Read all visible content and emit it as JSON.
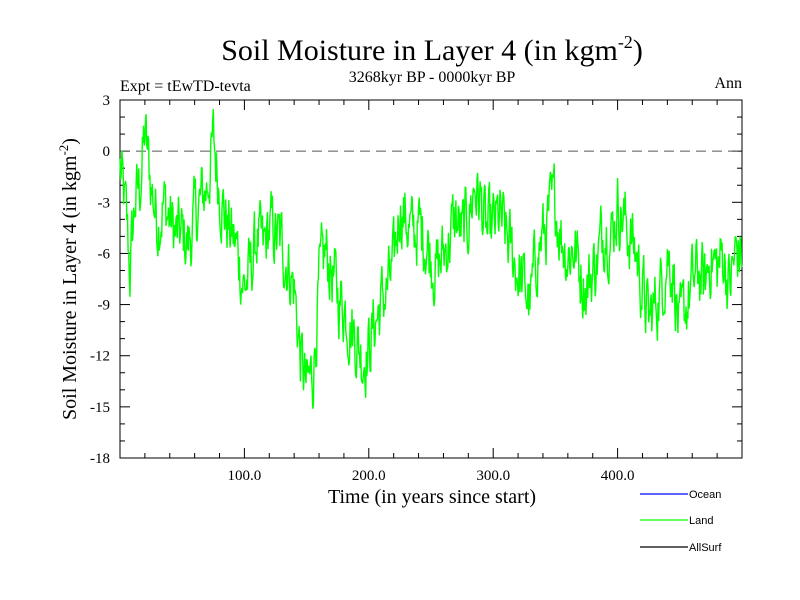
{
  "chart_data": {
    "type": "line",
    "title": "Soil Moisture in Layer 4 (in kgm",
    "title_sup": "-2",
    "title_end": ")",
    "subtitle": "3268kyr BP - 0000kyr BP",
    "expt_label": "Expt = tEwTD-tevta",
    "season_label": "Ann",
    "xlabel": "Time (in years since start)",
    "ylabel": "Soil Moisture in Layer 4 (in kgm",
    "ylabel_sup": "-2",
    "ylabel_end": ")",
    "xlim": [
      0,
      500
    ],
    "ylim": [
      -18,
      3
    ],
    "x_ticks": [
      100,
      200,
      300,
      400
    ],
    "x_tick_labels": [
      "100.0",
      "200.0",
      "300.0",
      "400.0"
    ],
    "y_ticks": [
      3,
      0,
      -3,
      -6,
      -9,
      -12,
      -15,
      -18
    ],
    "y_tick_labels": [
      "3",
      "0",
      "-3",
      "-6",
      "-9",
      "-12",
      "-15",
      "-18"
    ],
    "reference_line": 0,
    "legend": [
      {
        "name": "Ocean",
        "color": "#0000ff"
      },
      {
        "name": "Land",
        "color": "#00ff00"
      },
      {
        "name": "AllSurf",
        "color": "#000000"
      }
    ],
    "series": [
      {
        "name": "Land",
        "color": "#00ff00",
        "anchors_x": [
          0,
          5,
          8,
          12,
          16,
          20,
          25,
          30,
          35,
          40,
          45,
          50,
          55,
          60,
          65,
          70,
          75,
          80,
          85,
          90,
          95,
          100,
          105,
          110,
          115,
          120,
          125,
          130,
          135,
          140,
          145,
          150,
          155,
          160,
          165,
          170,
          175,
          180,
          185,
          190,
          195,
          200,
          205,
          210,
          215,
          220,
          225,
          230,
          235,
          240,
          245,
          250,
          255,
          260,
          265,
          270,
          275,
          280,
          285,
          290,
          295,
          300,
          305,
          310,
          315,
          320,
          325,
          330,
          335,
          340,
          345,
          350,
          355,
          360,
          365,
          370,
          375,
          380,
          385,
          390,
          395,
          400,
          405,
          410,
          415,
          420,
          425,
          430,
          435,
          440,
          445,
          450,
          455,
          460,
          465,
          470,
          475,
          480,
          485,
          490,
          495,
          500
        ],
        "anchors_y": [
          -1,
          -4,
          -7,
          -3,
          -2,
          1,
          -2,
          -4,
          -3,
          -4,
          -5,
          -5,
          -5.5,
          -4,
          -3,
          -2,
          0.5,
          -2,
          -4,
          -5,
          -6,
          -8,
          -7,
          -5,
          -6,
          -4.5,
          -5,
          -5.5,
          -6.5,
          -8,
          -12,
          -14,
          -13,
          -8,
          -6,
          -7,
          -8.5,
          -9,
          -10,
          -11,
          -12,
          -11.5,
          -10,
          -9,
          -8,
          -7,
          -3,
          -4,
          -5,
          -4.5,
          -5,
          -6,
          -7,
          -6,
          -5,
          -4,
          -5,
          -4,
          -2,
          -3,
          -5,
          -4.5,
          -4,
          -5,
          -6,
          -7,
          -8,
          -9,
          -6,
          -5,
          -4,
          -3,
          -5,
          -6,
          -5.5,
          -7,
          -8,
          -7,
          -6,
          -4,
          -5,
          -3,
          -4,
          -5,
          -6,
          -8,
          -10,
          -9,
          -8,
          -6,
          -7,
          -11,
          -9,
          -8,
          -7,
          -8,
          -6,
          -7,
          -6,
          -8,
          -6,
          -6
        ]
      }
    ]
  }
}
